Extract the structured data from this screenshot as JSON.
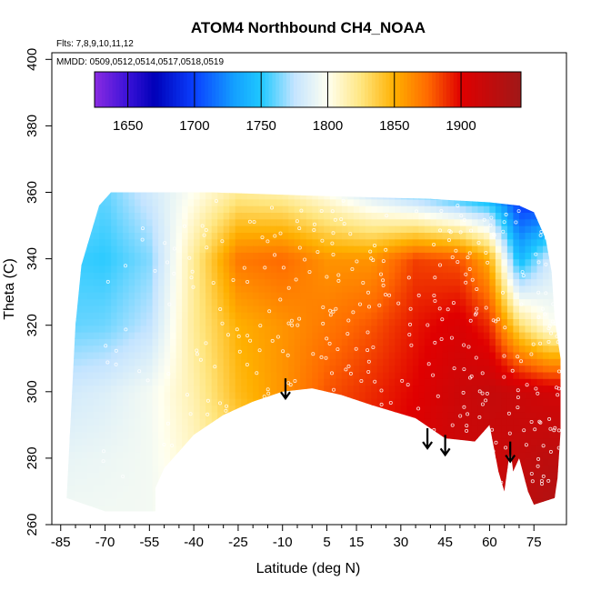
{
  "chart_data": {
    "type": "heatmap",
    "title": "ATOM4 Northbound CH4_NOAA",
    "flights_note": "Flts: 7,8,9,10,11,12",
    "dates_note": "MMDD: 0509,0512,0514,0517,0518,0519",
    "xlabel": "Latitude (deg N)",
    "ylabel": "Theta (C)",
    "xlim": [
      -88,
      86
    ],
    "ylim": [
      260,
      402
    ],
    "x_ticks": [
      -85,
      -70,
      -55,
      -40,
      -25,
      -10,
      5,
      15,
      30,
      45,
      60,
      75
    ],
    "x_tick_labels": [
      "-85",
      "-70",
      "-55",
      "-40",
      "-25",
      "-10",
      "5",
      "15",
      "30",
      "45",
      "60",
      "75"
    ],
    "y_ticks": [
      260,
      280,
      300,
      320,
      340,
      360,
      380,
      400
    ],
    "y_tick_labels": [
      "260",
      "280",
      "300",
      "320",
      "340",
      "360",
      "380",
      "400"
    ],
    "colorbar": {
      "range": [
        1625,
        1945
      ],
      "ticks": [
        1650,
        1700,
        1750,
        1800,
        1850,
        1900
      ],
      "tick_labels": [
        "1650",
        "1700",
        "1750",
        "1800",
        "1850",
        "1900"
      ],
      "stops": [
        {
          "value": 1625,
          "color": "#8a2be2"
        },
        {
          "value": 1650,
          "color": "#3a12d8"
        },
        {
          "value": 1670,
          "color": "#0000b8"
        },
        {
          "value": 1700,
          "color": "#0a40ff"
        },
        {
          "value": 1730,
          "color": "#14a0ff"
        },
        {
          "value": 1750,
          "color": "#1ec8ff"
        },
        {
          "value": 1775,
          "color": "#c4e4ff"
        },
        {
          "value": 1800,
          "color": "#fffff0"
        },
        {
          "value": 1825,
          "color": "#ffe680"
        },
        {
          "value": 1850,
          "color": "#ffb000"
        },
        {
          "value": 1875,
          "color": "#ff6a00"
        },
        {
          "value": 1900,
          "color": "#e00000"
        },
        {
          "value": 1945,
          "color": "#a01818"
        }
      ]
    },
    "arrows_latitude": [
      -9,
      39,
      45,
      67
    ],
    "region_outline": [
      [
        -83,
        268
      ],
      [
        -80,
        320
      ],
      [
        -78,
        338
      ],
      [
        -74,
        350
      ],
      [
        -72,
        356
      ],
      [
        -68,
        360
      ],
      [
        -50,
        360
      ],
      [
        -35,
        360
      ],
      [
        0,
        359
      ],
      [
        40,
        358
      ],
      [
        60,
        357
      ],
      [
        70,
        356
      ],
      [
        75,
        354
      ],
      [
        79,
        346
      ],
      [
        81,
        336
      ],
      [
        82,
        322
      ],
      [
        84,
        310
      ],
      [
        84,
        300
      ],
      [
        84,
        288
      ],
      [
        83,
        274
      ],
      [
        82,
        268
      ],
      [
        75,
        266
      ],
      [
        73,
        270
      ],
      [
        70,
        280
      ],
      [
        68,
        276
      ],
      [
        67,
        283
      ],
      [
        65,
        270
      ],
      [
        63,
        276
      ],
      [
        60,
        290
      ],
      [
        55,
        285
      ],
      [
        45,
        286
      ],
      [
        35,
        292
      ],
      [
        20,
        296
      ],
      [
        10,
        299
      ],
      [
        0,
        301
      ],
      [
        -10,
        300
      ],
      [
        -20,
        297
      ],
      [
        -30,
        293
      ],
      [
        -40,
        287
      ],
      [
        -45,
        282
      ],
      [
        -50,
        277
      ],
      [
        -53,
        271
      ],
      [
        -53,
        264
      ],
      [
        -70,
        264
      ]
    ],
    "grid_values": {
      "lats": [
        -85,
        -70,
        -55,
        -40,
        -25,
        -10,
        5,
        20,
        35,
        50,
        60,
        70,
        80
      ],
      "thetas": [
        260,
        280,
        300,
        320,
        340,
        360
      ],
      "values": [
        [
          1795,
          1795,
          1795,
          1800,
          1810,
          1825,
          1850,
          1875,
          1895,
          1910,
          1915,
          1925,
          1935
        ],
        [
          1790,
          1792,
          1795,
          1810,
          1830,
          1860,
          1880,
          1895,
          1905,
          1915,
          1915,
          1920,
          1925
        ],
        [
          1780,
          1785,
          1795,
          1815,
          1845,
          1860,
          1880,
          1890,
          1900,
          1915,
          1920,
          1915,
          1910
        ],
        [
          1760,
          1762,
          1775,
          1820,
          1850,
          1860,
          1870,
          1880,
          1895,
          1905,
          1890,
          1830,
          1800
        ],
        [
          1755,
          1752,
          1765,
          1820,
          1870,
          1875,
          1860,
          1860,
          1885,
          1880,
          1850,
          1740,
          1780
        ],
        [
          1770,
          1760,
          1780,
          1800,
          1820,
          1815,
          1800,
          1780,
          1760,
          1740,
          1730,
          1690,
          1680
        ]
      ]
    }
  }
}
